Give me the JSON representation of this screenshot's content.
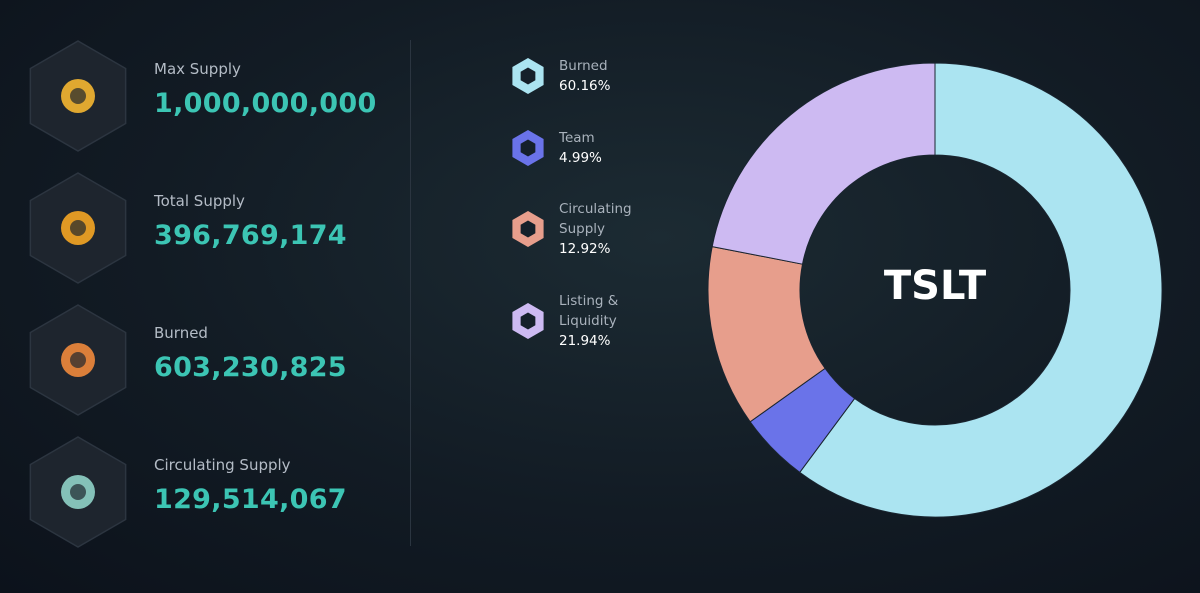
{
  "stats": [
    {
      "label": "Max Supply",
      "value": "1,000,000,000"
    },
    {
      "label": "Total Supply",
      "value": "396,769,174"
    },
    {
      "label": "Burned",
      "value": "603,230,825"
    },
    {
      "label": "Circulating Supply",
      "value": "129,514,067"
    }
  ],
  "chart_data": {
    "type": "pie",
    "center_label": "TSLT",
    "categories": [
      "Burned",
      "Team",
      "Circulating Supply",
      "Listing & Liquidity"
    ],
    "values": [
      60.16,
      4.99,
      12.92,
      21.94
    ],
    "value_labels": [
      "60.16%",
      "4.99%",
      "12.92%",
      "21.94%"
    ],
    "colors": [
      "#abe4f1",
      "#6a73e9",
      "#e79e8c",
      "#cdbaf2"
    ]
  }
}
